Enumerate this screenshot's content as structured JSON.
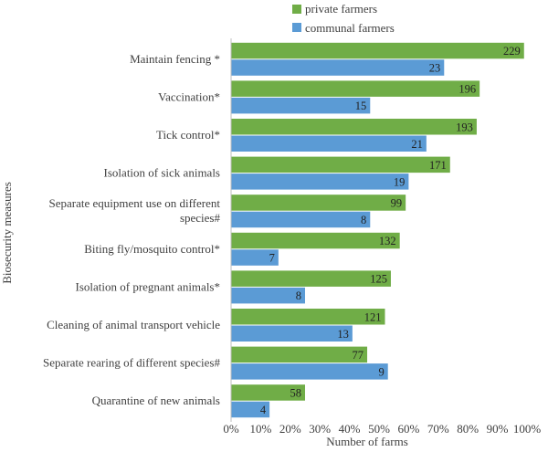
{
  "chart_data": {
    "type": "bar",
    "orientation": "horizontal",
    "xlabel": "Number of farms",
    "ylabel": "Biosecurity  measures",
    "xlim": [
      0,
      100
    ],
    "x_ticks": [
      "0%",
      "10%",
      "20%",
      "30%",
      "40%",
      "50%",
      "60%",
      "70%",
      "80%",
      "90%",
      "100%"
    ],
    "grid": false,
    "legend_position": "top",
    "categories": [
      [
        "Maintain fencing *"
      ],
      [
        "Vaccination*"
      ],
      [
        "Tick control*"
      ],
      [
        "Isolation  of sick animals"
      ],
      [
        "Separate equipment use on different",
        "species#"
      ],
      [
        "Biting fly/mosquito control*"
      ],
      [
        "Isolation of pregnant animals*"
      ],
      [
        "Cleaning of animal transport vehicle"
      ],
      [
        "Separate rearing of different species#"
      ],
      [
        "Quarantine of new animals"
      ]
    ],
    "series": [
      {
        "name": "private farmers",
        "color": "#70AD47",
        "percent": [
          99,
          84,
          83,
          74,
          59,
          57,
          54,
          52,
          46,
          25
        ],
        "labels": [
          "229",
          "196",
          "193",
          "171",
          "99",
          "132",
          "125",
          "121",
          "77",
          "58"
        ]
      },
      {
        "name": "communal farmers",
        "color": "#5B9BD5",
        "percent": [
          72,
          47,
          66,
          60,
          47,
          16,
          25,
          41,
          53,
          13
        ],
        "labels": [
          "23",
          "15",
          "21",
          "19",
          "8",
          "7",
          "8",
          "13",
          "9",
          "4"
        ]
      }
    ]
  }
}
